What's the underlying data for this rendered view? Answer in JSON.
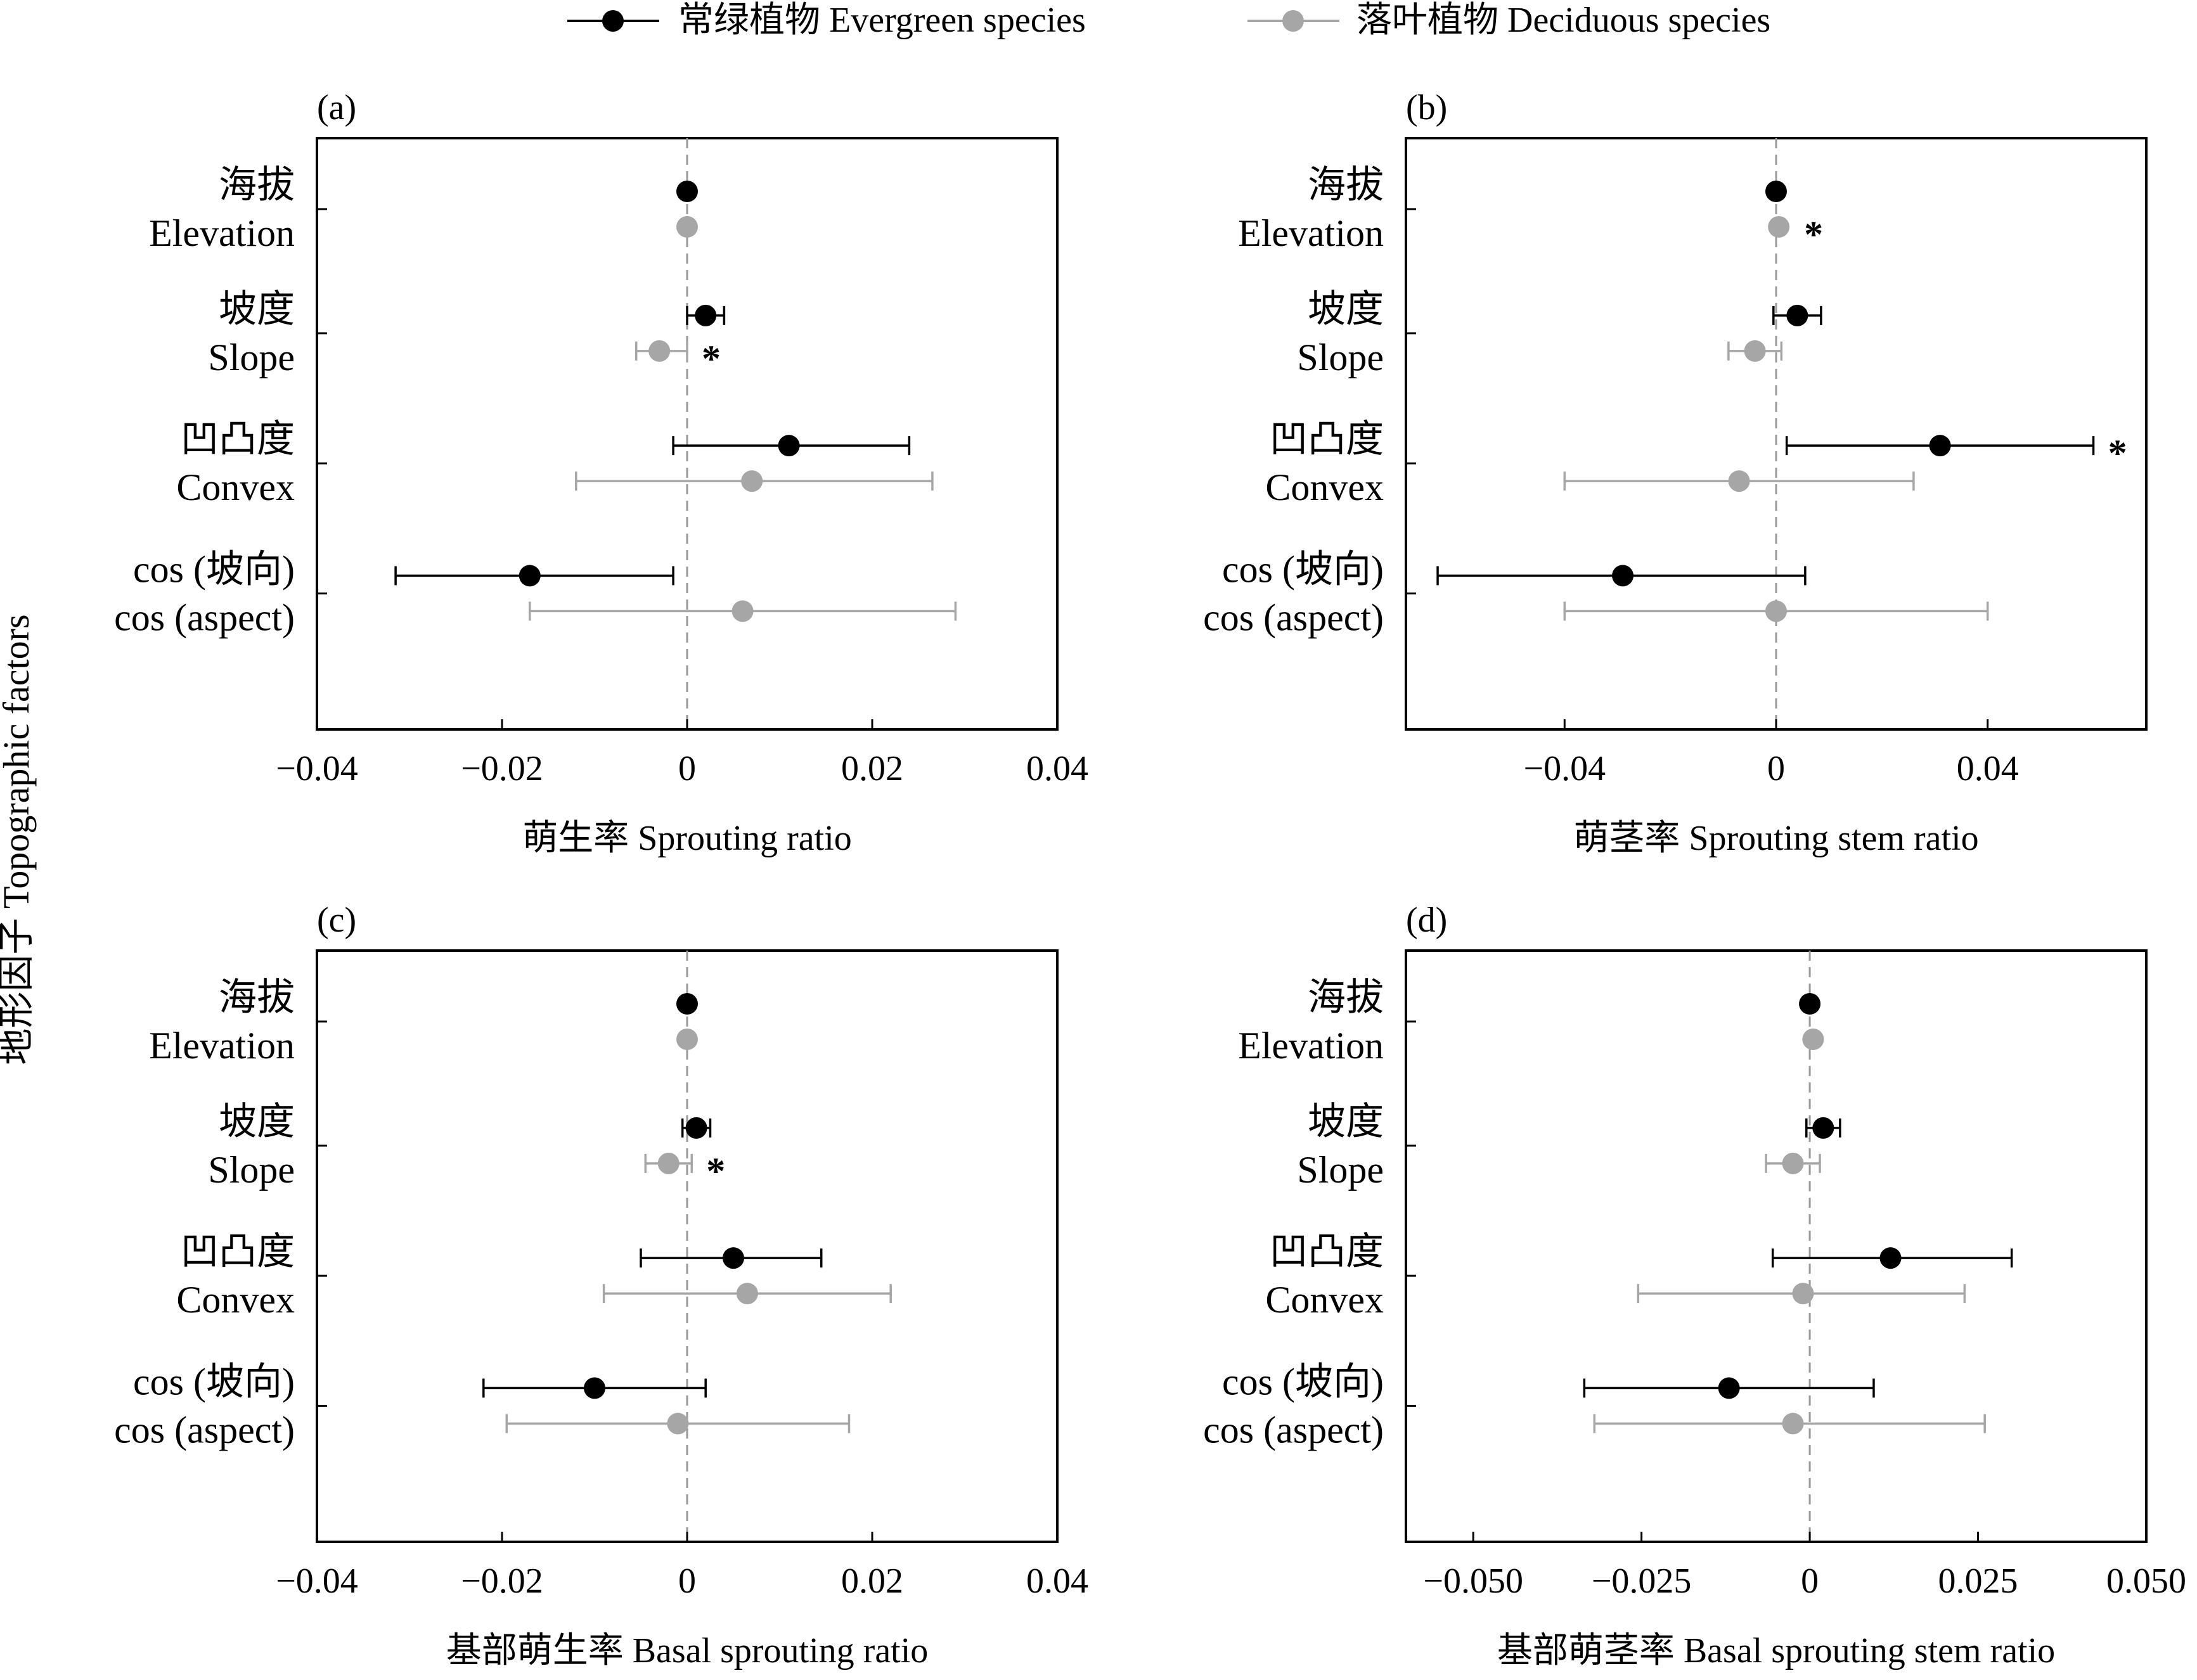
{
  "y_axis_title": "地形因子 Topographic factors",
  "legend": {
    "placement": "top-center",
    "entries": [
      {
        "label": "常绿植物 Evergreen species",
        "color": "#000000"
      },
      {
        "label": "落叶植物 Deciduous species",
        "color": "#a6a6a6"
      }
    ]
  },
  "colors": {
    "evergreen": "#000000",
    "deciduous": "#a6a6a6"
  },
  "chart_data": [
    {
      "type": "scatter",
      "panel": "(a)",
      "xlabel": "萌生率 Sprouting ratio",
      "xlim": [
        -0.04,
        0.04
      ],
      "xticks": [
        -0.04,
        -0.02,
        0,
        0.02,
        0.04
      ],
      "xtick_labels": [
        "−0.04",
        "−0.02",
        "0",
        "0.02",
        "0.04"
      ],
      "reference_line": 0,
      "categories": [
        {
          "cn": "海拔",
          "en": "Elevation"
        },
        {
          "cn": "坡度",
          "en": "Slope"
        },
        {
          "cn": "凹凸度",
          "en": "Convex"
        },
        {
          "cn": "cos (坡向)",
          "en": "cos (aspect)"
        }
      ],
      "series": [
        {
          "name": "常绿植物 Evergreen species",
          "mean": [
            0.0,
            0.002,
            0.011,
            -0.017
          ],
          "lower": [
            0.0,
            0.0,
            -0.0015,
            -0.0315
          ],
          "upper": [
            0.0,
            0.004,
            0.024,
            -0.0015
          ],
          "significant": [
            false,
            false,
            false,
            false
          ]
        },
        {
          "name": "落叶植物 Deciduous species",
          "mean": [
            0.0,
            -0.003,
            0.007,
            0.006
          ],
          "lower": [
            0.0,
            -0.0055,
            -0.012,
            -0.017
          ],
          "upper": [
            0.0,
            0.0,
            0.0265,
            0.029
          ],
          "significant": [
            false,
            true,
            false,
            false
          ]
        }
      ]
    },
    {
      "type": "scatter",
      "panel": "(b)",
      "xlabel": "萌茎率 Sprouting stem ratio",
      "xlim": [
        -0.07,
        0.07
      ],
      "xticks": [
        -0.04,
        0,
        0.04
      ],
      "xtick_labels": [
        "−0.04",
        "0",
        "0.04"
      ],
      "reference_line": 0,
      "categories": [
        {
          "cn": "海拔",
          "en": "Elevation"
        },
        {
          "cn": "坡度",
          "en": "Slope"
        },
        {
          "cn": "凹凸度",
          "en": "Convex"
        },
        {
          "cn": "cos (坡向)",
          "en": "cos (aspect)"
        }
      ],
      "series": [
        {
          "name": "常绿植物 Evergreen species",
          "mean": [
            0.0,
            0.004,
            0.031,
            -0.029
          ],
          "lower": [
            0.0,
            -0.0005,
            0.002,
            -0.064
          ],
          "upper": [
            0.0,
            0.0085,
            0.06,
            0.0055
          ],
          "significant": [
            false,
            false,
            true,
            false
          ]
        },
        {
          "name": "落叶植物 Deciduous species",
          "mean": [
            0.0005,
            -0.004,
            -0.007,
            0.0
          ],
          "lower": [
            0.0005,
            -0.009,
            -0.04,
            -0.04
          ],
          "upper": [
            0.0005,
            0.001,
            0.026,
            0.04
          ],
          "significant": [
            true,
            false,
            false,
            false
          ]
        }
      ]
    },
    {
      "type": "scatter",
      "panel": "(c)",
      "xlabel": "基部萌生率 Basal sprouting ratio",
      "xlim": [
        -0.04,
        0.04
      ],
      "xticks": [
        -0.04,
        -0.02,
        0,
        0.02,
        0.04
      ],
      "xtick_labels": [
        "−0.04",
        "−0.02",
        "0",
        "0.02",
        "0.04"
      ],
      "reference_line": 0,
      "categories": [
        {
          "cn": "海拔",
          "en": "Elevation"
        },
        {
          "cn": "坡度",
          "en": "Slope"
        },
        {
          "cn": "凹凸度",
          "en": "Convex"
        },
        {
          "cn": "cos (坡向)",
          "en": "cos (aspect)"
        }
      ],
      "series": [
        {
          "name": "常绿植物 Evergreen species",
          "mean": [
            0.0,
            0.001,
            0.005,
            -0.01
          ],
          "lower": [
            0.0,
            -0.0005,
            -0.005,
            -0.022
          ],
          "upper": [
            0.0,
            0.0025,
            0.0145,
            0.002
          ],
          "significant": [
            false,
            false,
            false,
            false
          ]
        },
        {
          "name": "落叶植物 Deciduous species",
          "mean": [
            0.0,
            -0.002,
            0.0065,
            -0.001
          ],
          "lower": [
            0.0,
            -0.0045,
            -0.009,
            -0.0195
          ],
          "upper": [
            0.0,
            0.0005,
            0.022,
            0.0175
          ],
          "significant": [
            false,
            true,
            false,
            false
          ]
        }
      ]
    },
    {
      "type": "scatter",
      "panel": "(d)",
      "xlabel": "基部萌茎率 Basal sprouting stem ratio",
      "xlim": [
        -0.06,
        0.05
      ],
      "xticks": [
        -0.05,
        -0.025,
        0,
        0.025,
        0.05
      ],
      "xtick_labels": [
        "−0.050",
        "−0.025",
        "0",
        "0.025",
        "0.050"
      ],
      "reference_line": 0,
      "categories": [
        {
          "cn": "海拔",
          "en": "Elevation"
        },
        {
          "cn": "坡度",
          "en": "Slope"
        },
        {
          "cn": "凹凸度",
          "en": "Convex"
        },
        {
          "cn": "cos (坡向)",
          "en": "cos (aspect)"
        }
      ],
      "series": [
        {
          "name": "常绿植物 Evergreen species",
          "mean": [
            0.0,
            0.002,
            0.012,
            -0.012
          ],
          "lower": [
            0.0,
            -0.0005,
            -0.0055,
            -0.0335
          ],
          "upper": [
            0.0,
            0.0045,
            0.03,
            0.0095
          ],
          "significant": [
            false,
            false,
            false,
            false
          ]
        },
        {
          "name": "落叶植物 Deciduous species",
          "mean": [
            0.0005,
            -0.0025,
            -0.001,
            -0.0025
          ],
          "lower": [
            0.0005,
            -0.0065,
            -0.0255,
            -0.032
          ],
          "upper": [
            0.0005,
            0.0015,
            0.023,
            0.026
          ],
          "significant": [
            false,
            false,
            false,
            false
          ]
        }
      ]
    }
  ]
}
